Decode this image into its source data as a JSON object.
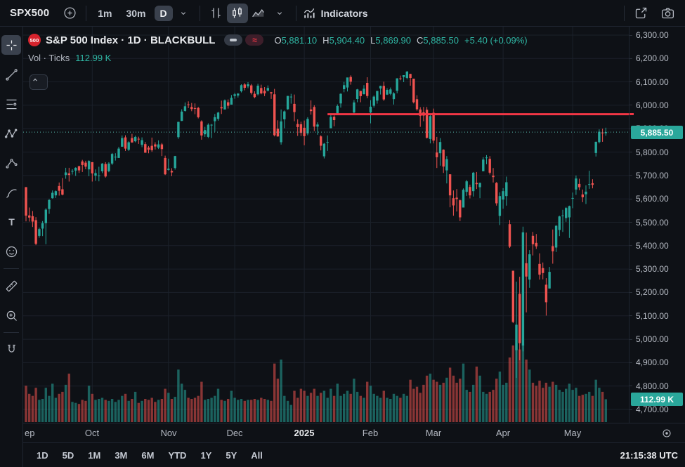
{
  "toolbar": {
    "symbol": "SPX500",
    "intervals": [
      {
        "label": "1m",
        "selected": false
      },
      {
        "label": "30m",
        "selected": false
      },
      {
        "label": "D",
        "selected": true
      }
    ],
    "indicators_label": "Indicators",
    "icons": [
      "plus-circle-icon",
      "chevron-down-icon",
      "bar-chart-style-icon",
      "candlestick-style-icon",
      "area-chart-style-icon",
      "indicators-icon",
      "share-icon",
      "camera-icon"
    ]
  },
  "sidebar": {
    "tools": [
      {
        "name": "crosshair",
        "icon": "crosshair-icon",
        "selected": true
      },
      {
        "name": "trend-line",
        "icon": "trend-line-icon",
        "selected": false
      },
      {
        "name": "fib-retracement",
        "icon": "fib-retracement-icon",
        "selected": false
      },
      {
        "name": "xabcd-pattern",
        "icon": "xabcd-pattern-icon",
        "selected": false
      },
      {
        "name": "forecast",
        "icon": "forecast-icon",
        "selected": false
      },
      {
        "name": "brush",
        "icon": "brush-icon",
        "selected": false
      },
      {
        "name": "text",
        "icon": "text-icon",
        "selected": false
      },
      {
        "name": "emoji",
        "icon": "emoji-icon",
        "selected": false
      },
      {
        "name": "measure",
        "icon": "ruler-icon",
        "selected": false,
        "sep_before": true
      },
      {
        "name": "zoom-in",
        "icon": "magnifier-icon",
        "selected": false
      },
      {
        "name": "magnet",
        "icon": "magnet-icon",
        "selected": false,
        "sep_before": true
      }
    ]
  },
  "legend": {
    "badge": "500",
    "title": "S&P 500 Index · 1D · BLACKBULL",
    "ohlc": {
      "o_label": "O",
      "o": "5,881.10",
      "h_label": "H",
      "h": "5,904.40",
      "l_label": "L",
      "l": "5,869.90",
      "c_label": "C",
      "c": "5,885.50",
      "change": "+5.40 (+0.09%)"
    },
    "row2_label": "Vol · Ticks",
    "row2_value": "112.99 K"
  },
  "price_axis": {
    "price_badge": "5,885.50",
    "volume_badge": "112.99 K"
  },
  "bottom_bar": {
    "ranges": [
      "1D",
      "5D",
      "1M",
      "3M",
      "6M",
      "YTD",
      "1Y",
      "5Y",
      "All"
    ],
    "clock": "21:15:38 UTC"
  },
  "colors": {
    "up": "#26a69a",
    "down": "#ef5350",
    "up_vol": "rgba(38,166,154,0.55)",
    "down_vol": "rgba(239,83,80,0.55)",
    "grid": "#1b212a",
    "ray_red": "#f23645",
    "badge_teal": "#2aa79b",
    "last_price_dotted": "#57b8ac"
  },
  "chart_data": {
    "type": "candlestick",
    "title": "S&P 500 Index",
    "interval": "1D",
    "provider": "BLACKBULL",
    "legend_position": "top-left",
    "grid": true,
    "y_axis": {
      "min": 4700,
      "max": 6300,
      "step": 100
    },
    "last_bar": {
      "open": 5881.1,
      "high": 5904.4,
      "low": 5869.9,
      "close": 5885.5,
      "change": 5.4,
      "change_pct": 0.09,
      "volume_k": 112.99
    },
    "last_price_line": {
      "price": 5885.5,
      "label": "5,885.50"
    },
    "drawings": [
      {
        "type": "horizontal_ray",
        "price": 5962,
        "from_index": 91,
        "color": "#f23645"
      }
    ],
    "months": [
      [
        "ep",
        0
      ],
      [
        "Oct",
        20
      ],
      [
        "Nov",
        43
      ],
      [
        "Dec",
        63
      ],
      [
        "2025",
        84
      ],
      [
        "Feb",
        104
      ],
      [
        "Mar",
        123
      ],
      [
        "Apr",
        144
      ],
      [
        "May",
        165
      ]
    ],
    "volume_unit": "K",
    "candles": [
      [
        5650,
        5651,
        5504,
        5528,
        180
      ],
      [
        5529,
        5563,
        5503,
        5520,
        140
      ],
      [
        5526,
        5548,
        5480,
        5503,
        130
      ],
      [
        5509,
        5522,
        5402,
        5408,
        170
      ],
      [
        5442,
        5477,
        5434,
        5471,
        110
      ],
      [
        5473,
        5505,
        5441,
        5496,
        115
      ],
      [
        5496,
        5560,
        5406,
        5554,
        170
      ],
      [
        5557,
        5600,
        5536,
        5595,
        130
      ],
      [
        5603,
        5636,
        5601,
        5626,
        190
      ],
      [
        5615,
        5636,
        5604,
        5633,
        120
      ],
      [
        5655,
        5670,
        5614,
        5635,
        140
      ],
      [
        5641,
        5689,
        5615,
        5618,
        150
      ],
      [
        5702,
        5733,
        5686,
        5713,
        185
      ],
      [
        5709,
        5733,
        5674,
        5702,
        240
      ],
      [
        5718,
        5727,
        5704,
        5719,
        100
      ],
      [
        5721,
        5735,
        5698,
        5733,
        95
      ],
      [
        5740,
        5741,
        5711,
        5722,
        90
      ],
      [
        5760,
        5767,
        5715,
        5745,
        110
      ],
      [
        5755,
        5763,
        5727,
        5738,
        105
      ],
      [
        5726,
        5765,
        5697,
        5762,
        180
      ],
      [
        5757,
        5757,
        5674,
        5709,
        140
      ],
      [
        5699,
        5726,
        5677,
        5710,
        110
      ],
      [
        5698,
        5737,
        5675,
        5700,
        115
      ],
      [
        5718,
        5753,
        5710,
        5751,
        120
      ],
      [
        5749,
        5757,
        5691,
        5696,
        110
      ],
      [
        5719,
        5757,
        5714,
        5751,
        105
      ],
      [
        5751,
        5796,
        5745,
        5792,
        115
      ],
      [
        5779,
        5795,
        5764,
        5780,
        100
      ],
      [
        5775,
        5822,
        5775,
        5815,
        110
      ],
      [
        5823,
        5871,
        5823,
        5860,
        130
      ],
      [
        5863,
        5872,
        5805,
        5815,
        140
      ],
      [
        5810,
        5846,
        5805,
        5842,
        105
      ],
      [
        5860,
        5878,
        5840,
        5841,
        115
      ],
      [
        5846,
        5870,
        5842,
        5865,
        150
      ],
      [
        5857,
        5866,
        5835,
        5854,
        95
      ],
      [
        5831,
        5863,
        5821,
        5851,
        105
      ],
      [
        5834,
        5843,
        5797,
        5797,
        115
      ],
      [
        5819,
        5826,
        5795,
        5810,
        110
      ],
      [
        5827,
        5862,
        5801,
        5808,
        120
      ],
      [
        5833,
        5842,
        5811,
        5824,
        100
      ],
      [
        5819,
        5850,
        5813,
        5833,
        110
      ],
      [
        5833,
        5839,
        5783,
        5813,
        115
      ],
      [
        5775,
        5785,
        5702,
        5705,
        165
      ],
      [
        5724,
        5772,
        5721,
        5729,
        145
      ],
      [
        5719,
        5731,
        5697,
        5713,
        115
      ],
      [
        5732,
        5784,
        5725,
        5783,
        125
      ],
      [
        5864,
        5930,
        5857,
        5929,
        260
      ],
      [
        5933,
        5983,
        5933,
        5973,
        190
      ],
      [
        5976,
        6012,
        5973,
        5996,
        160
      ],
      [
        6004,
        6017,
        5988,
        6001,
        120
      ],
      [
        5993,
        6010,
        5975,
        5984,
        115
      ],
      [
        5988,
        6008,
        5962,
        5985,
        120
      ],
      [
        5989,
        5993,
        5944,
        5949,
        130
      ],
      [
        5931,
        5936,
        5853,
        5871,
        200
      ],
      [
        5876,
        5908,
        5865,
        5894,
        110
      ],
      [
        5865,
        5923,
        5860,
        5917,
        115
      ],
      [
        5914,
        5920,
        5860,
        5917,
        120
      ],
      [
        5932,
        5963,
        5887,
        5949,
        130
      ],
      [
        5942,
        5972,
        5934,
        5969,
        165
      ],
      [
        5992,
        6020,
        5963,
        5987,
        110
      ],
      [
        5982,
        6025,
        5982,
        6021,
        105
      ],
      [
        6013,
        6025,
        5986,
        5998,
        115
      ],
      [
        6003,
        6044,
        6003,
        6032,
        155
      ],
      [
        6040,
        6053,
        6028,
        6047,
        120
      ],
      [
        6042,
        6052,
        6033,
        6050,
        110
      ],
      [
        6060,
        6090,
        6055,
        6086,
        115
      ],
      [
        6089,
        6095,
        6064,
        6075,
        105
      ],
      [
        6081,
        6099,
        6073,
        6090,
        110
      ],
      [
        6085,
        6091,
        6046,
        6053,
        110
      ],
      [
        6049,
        6060,
        6030,
        6035,
        115
      ],
      [
        6047,
        6092,
        6042,
        6084,
        110
      ],
      [
        6074,
        6088,
        6047,
        6051,
        120
      ],
      [
        6062,
        6078,
        6039,
        6051,
        115
      ],
      [
        6063,
        6085,
        6059,
        6074,
        110
      ],
      [
        6056,
        6057,
        6027,
        6051,
        105
      ],
      [
        6047,
        6070,
        5867,
        5872,
        290
      ],
      [
        5900,
        5936,
        5866,
        5867,
        215
      ],
      [
        5842,
        5982,
        5832,
        5931,
        310
      ],
      [
        5940,
        5978,
        5902,
        5974,
        130
      ],
      [
        5983,
        6040,
        5981,
        6040,
        105
      ],
      [
        6037,
        6049,
        6007,
        6037,
        85
      ],
      [
        6006,
        6046,
        5932,
        5971,
        155
      ],
      [
        5920,
        5940,
        5869,
        5907,
        120
      ],
      [
        5919,
        5930,
        5869,
        5882,
        165
      ],
      [
        5904,
        5935,
        5829,
        5868,
        155
      ],
      [
        5880,
        5949,
        5872,
        5942,
        130
      ],
      [
        5982,
        6021,
        5960,
        5975,
        145
      ],
      [
        5993,
        6000,
        5890,
        5909,
        165
      ],
      [
        5909,
        5927,
        5874,
        5918,
        130
      ],
      [
        5867,
        5872,
        5807,
        5827,
        145
      ],
      [
        5782,
        5839,
        5773,
        5836,
        155
      ],
      [
        5843,
        5871,
        5805,
        5843,
        120
      ],
      [
        5902,
        5960,
        5902,
        5950,
        165
      ],
      [
        5951,
        5957,
        5910,
        5937,
        130
      ],
      [
        5963,
        6004,
        5963,
        5997,
        190
      ],
      [
        6008,
        6051,
        5990,
        6049,
        130
      ],
      [
        6069,
        6100,
        6056,
        6086,
        140
      ],
      [
        6076,
        6118,
        6059,
        6119,
        155
      ],
      [
        6121,
        6128,
        6088,
        6101,
        140
      ],
      [
        5969,
        6022,
        5962,
        6012,
        215
      ],
      [
        6027,
        6070,
        6013,
        6068,
        150
      ],
      [
        6061,
        6062,
        6013,
        6039,
        130
      ],
      [
        6048,
        6086,
        6046,
        6071,
        120
      ],
      [
        6096,
        6120,
        6030,
        6040,
        200
      ],
      [
        5969,
        6022,
        5923,
        5994,
        180
      ],
      [
        5998,
        6042,
        5990,
        6037,
        140
      ],
      [
        6020,
        6062,
        6007,
        6061,
        130
      ],
      [
        6072,
        6084,
        6046,
        6083,
        120
      ],
      [
        6083,
        6101,
        6019,
        6025,
        155
      ],
      [
        6046,
        6073,
        6044,
        6066,
        120
      ],
      [
        6049,
        6076,
        6043,
        6068,
        115
      ],
      [
        6026,
        6056,
        6003,
        6051,
        140
      ],
      [
        6062,
        6116,
        6051,
        6115,
        130
      ],
      [
        6115,
        6127,
        6107,
        6114,
        120
      ],
      [
        6121,
        6129,
        6099,
        6129,
        140
      ],
      [
        6117,
        6147,
        6111,
        6144,
        130
      ],
      [
        6134,
        6135,
        6084,
        6117,
        210
      ],
      [
        6114,
        6114,
        6008,
        6013,
        165
      ],
      [
        6026,
        6043,
        5977,
        5983,
        175
      ],
      [
        5982,
        5992,
        5908,
        5955,
        145
      ],
      [
        5970,
        5993,
        5932,
        5956,
        185
      ],
      [
        5981,
        5993,
        5858,
        5861,
        230
      ],
      [
        5856,
        5959,
        5837,
        5954,
        240
      ],
      [
        5968,
        5986,
        5837,
        5849,
        210
      ],
      [
        5798,
        5865,
        5732,
        5778,
        200
      ],
      [
        5795,
        5860,
        5742,
        5843,
        185
      ],
      [
        5810,
        5812,
        5711,
        5738,
        195
      ],
      [
        5722,
        5783,
        5666,
        5770,
        220
      ],
      [
        5705,
        5705,
        5564,
        5615,
        270
      ],
      [
        5603,
        5636,
        5528,
        5572,
        230
      ],
      [
        5605,
        5642,
        5546,
        5599,
        195
      ],
      [
        5594,
        5597,
        5505,
        5521,
        215
      ],
      [
        5563,
        5645,
        5563,
        5639,
        290
      ],
      [
        5630,
        5681,
        5613,
        5675,
        160
      ],
      [
        5651,
        5661,
        5602,
        5615,
        150
      ],
      [
        5633,
        5715,
        5610,
        5712,
        185
      ],
      [
        5668,
        5715,
        5642,
        5663,
        275
      ],
      [
        5650,
        5670,
        5603,
        5668,
        230
      ],
      [
        5718,
        5778,
        5718,
        5768,
        150
      ],
      [
        5774,
        5787,
        5748,
        5777,
        140
      ],
      [
        5771,
        5783,
        5704,
        5712,
        150
      ],
      [
        5699,
        5732,
        5670,
        5693,
        160
      ],
      [
        5668,
        5672,
        5571,
        5581,
        215
      ],
      [
        5527,
        5628,
        5488,
        5612,
        250
      ],
      [
        5597,
        5646,
        5558,
        5633,
        185
      ],
      [
        5612,
        5695,
        5571,
        5671,
        195
      ],
      [
        5492,
        5510,
        5390,
        5396,
        320
      ],
      [
        5293,
        5293,
        5069,
        5074,
        380
      ],
      [
        4953,
        5246,
        4835,
        5062,
        390
      ],
      [
        5194,
        5267,
        4910,
        4983,
        360
      ],
      [
        4973,
        5481,
        4948,
        5457,
        385
      ],
      [
        5325,
        5456,
        5115,
        5268,
        310
      ],
      [
        5255,
        5381,
        5220,
        5363,
        260
      ],
      [
        5442,
        5459,
        5358,
        5406,
        195
      ],
      [
        5412,
        5450,
        5386,
        5397,
        180
      ],
      [
        5322,
        5367,
        5255,
        5276,
        205
      ],
      [
        5304,
        5328,
        5256,
        5283,
        170
      ],
      [
        5233,
        5261,
        5101,
        5158,
        195
      ],
      [
        5217,
        5309,
        5217,
        5288,
        175
      ],
      [
        5398,
        5469,
        5323,
        5376,
        200
      ],
      [
        5392,
        5487,
        5373,
        5485,
        185
      ],
      [
        5467,
        5528,
        5441,
        5525,
        160
      ],
      [
        5529,
        5553,
        5459,
        5529,
        150
      ],
      [
        5518,
        5565,
        5502,
        5561,
        165
      ],
      [
        5521,
        5571,
        5433,
        5569,
        190
      ],
      [
        5604,
        5627,
        5560,
        5604,
        160
      ],
      [
        5640,
        5700,
        5617,
        5687,
        170
      ],
      [
        5664,
        5686,
        5637,
        5650,
        130
      ],
      [
        5619,
        5640,
        5586,
        5607,
        135
      ],
      [
        5620,
        5658,
        5578,
        5631,
        140
      ],
      [
        5661,
        5720,
        5643,
        5663,
        150
      ],
      [
        5667,
        5684,
        5645,
        5660,
        130
      ],
      [
        5796,
        5845,
        5781,
        5844,
        210
      ],
      [
        5843,
        5897,
        5837,
        5887,
        170
      ],
      [
        5884,
        5900,
        5844,
        5880,
        150
      ],
      [
        5881.1,
        5904.4,
        5869.9,
        5885.5,
        113
      ]
    ]
  }
}
